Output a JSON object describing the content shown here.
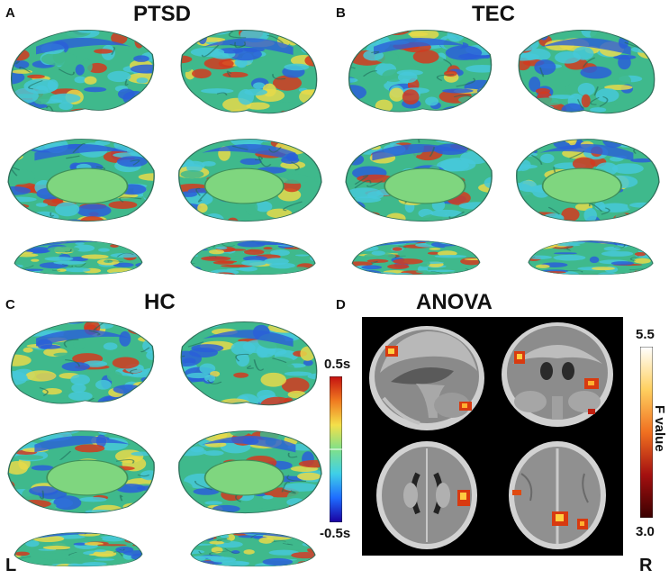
{
  "panels": {
    "a": {
      "letter": "A",
      "title": "PTSD"
    },
    "b": {
      "letter": "B",
      "title": "TEC"
    },
    "c": {
      "letter": "C",
      "title": "HC"
    },
    "d": {
      "letter": "D",
      "title": "ANOVA"
    }
  },
  "orientation": {
    "left": "L",
    "right": "R"
  },
  "colorbar_time": {
    "max_label": "0.5s",
    "min_label": "-0.5s",
    "colors": [
      "#1a00a0",
      "#1e6cff",
      "#3fd0e8",
      "#7fe08a",
      "#f4e04a",
      "#f07a20",
      "#c41010"
    ]
  },
  "colorbar_f": {
    "max_label": "5.5",
    "min_label": "3.0",
    "axis_label": "F value",
    "colors": [
      "#3a0000",
      "#a41010",
      "#f07020",
      "#ffd060",
      "#ffffff"
    ]
  },
  "brain_colors": {
    "base": "#3fb98c",
    "cortex_blue": "#2a5fd8",
    "cortex_cyan": "#46c8d8",
    "cortex_yellow": "#e6d94a",
    "cortex_red": "#d23a1e",
    "medial_wall": "#7fd67f"
  }
}
